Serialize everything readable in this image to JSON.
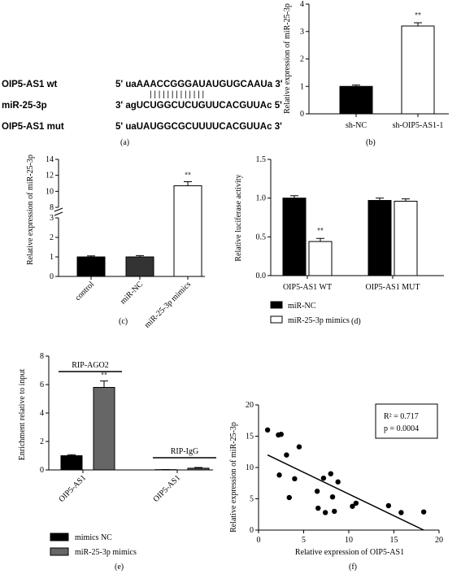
{
  "panel_a": {
    "caption": "(a)",
    "rows": [
      {
        "name": "OIP5-AS1  wt",
        "seq": "5' uaAAACCGGGAUAUGUGCAAUa 3'"
      },
      {
        "name": "miR-25-3p",
        "seq": "3' agUCUGGCUCUGUUCACGUUAc 5'"
      },
      {
        "name": "OIP5-AS1  mut",
        "seq": "5' uaUAUGGCGCUUUUCACGUUAc 3'"
      }
    ],
    "pairing": "|  |  |  |  |  |  |  |  |  |  |  |  |"
  },
  "chart_data": [
    {
      "panel": "b",
      "type": "bar",
      "caption": "(b)",
      "ylabel": "Relative expression of miR-25-3p",
      "categories": [
        "sh-NC",
        "sh-OIP5-AS1-1"
      ],
      "values": [
        1.0,
        3.2
      ],
      "errors": [
        0.05,
        0.12
      ],
      "fills": [
        "#000000",
        "#ffffff"
      ],
      "ylim": [
        0,
        4
      ],
      "yticks": [
        "0",
        "1",
        "2",
        "3",
        "4"
      ],
      "significance": [
        "",
        "**"
      ]
    },
    {
      "panel": "c",
      "type": "bar",
      "caption": "(c)",
      "ylabel": "Relative expression of miR-25-3p",
      "categories": [
        "control",
        "miR-NC",
        "miR-25-3p mimics"
      ],
      "values": [
        1.0,
        1.0,
        10.7
      ],
      "errors": [
        0.05,
        0.07,
        0.5
      ],
      "fills": [
        "#000000",
        "#333333",
        "#ffffff"
      ],
      "yaxis_break": [
        3,
        8
      ],
      "ylim": [
        0,
        14
      ],
      "yticks_lower": [
        "0",
        "1",
        "2",
        "3"
      ],
      "yticks_upper": [
        "8",
        "10",
        "12",
        "14"
      ],
      "significance": [
        "",
        "",
        "**"
      ]
    },
    {
      "panel": "d",
      "type": "bar",
      "caption": "(d)",
      "ylabel": "Relative luciferase activity",
      "categories": [
        "OIP5-AS1 WT",
        "OIP5-AS1 MUT"
      ],
      "series": [
        {
          "name": "miR-NC",
          "values": [
            1.0,
            0.97
          ],
          "errors": [
            0.03,
            0.03
          ],
          "color": "#000000"
        },
        {
          "name": "miR-25-3p mimics",
          "values": [
            0.44,
            0.96
          ],
          "errors": [
            0.04,
            0.03
          ],
          "color": "#ffffff"
        }
      ],
      "ylim": [
        0,
        1.5
      ],
      "yticks": [
        "0.0",
        "0.5",
        "1.0",
        "1.5"
      ],
      "significance": [
        "**",
        ""
      ]
    },
    {
      "panel": "e",
      "type": "bar",
      "caption": "(e)",
      "ylabel": "Enrichment relative to input",
      "groups": [
        "RIP-AGO2",
        "RIP-IgG"
      ],
      "categories": [
        "OIP5-AS1",
        "OIP5-AS1"
      ],
      "series": [
        {
          "name": "mimics NC",
          "values": [
            1.0,
            0.02
          ],
          "errors": [
            0.07,
            0.01
          ],
          "color": "#000000"
        },
        {
          "name": "miR-25-3p mimics",
          "values": [
            5.8,
            0.12
          ],
          "errors": [
            0.45,
            0.05
          ],
          "color": "#666666"
        }
      ],
      "ylim": [
        0,
        8
      ],
      "yticks": [
        "0",
        "2",
        "4",
        "6",
        "8"
      ],
      "significance": [
        "**",
        ""
      ]
    },
    {
      "panel": "f",
      "type": "scatter",
      "caption": "(f)",
      "xlabel": "Relative expression of OIP5-AS1",
      "ylabel": "Relative expression of miR-25-3p",
      "xlim": [
        0,
        20
      ],
      "ylim": [
        0,
        20
      ],
      "xticks": [
        "0",
        "5",
        "10",
        "15",
        "20"
      ],
      "yticks": [
        "0",
        "5",
        "10",
        "15",
        "20"
      ],
      "points": [
        [
          1.0,
          16.0
        ],
        [
          2.2,
          15.2
        ],
        [
          2.5,
          15.3
        ],
        [
          2.3,
          8.8
        ],
        [
          3.1,
          12.0
        ],
        [
          3.4,
          5.2
        ],
        [
          4.0,
          8.2
        ],
        [
          4.5,
          13.3
        ],
        [
          6.5,
          6.2
        ],
        [
          6.6,
          3.5
        ],
        [
          7.2,
          8.3
        ],
        [
          7.4,
          2.8
        ],
        [
          8.0,
          9.0
        ],
        [
          8.2,
          5.3
        ],
        [
          8.4,
          3.0
        ],
        [
          8.8,
          7.7
        ],
        [
          10.4,
          3.8
        ],
        [
          10.8,
          4.3
        ],
        [
          14.4,
          3.9
        ],
        [
          15.8,
          2.8
        ],
        [
          18.3,
          2.9
        ]
      ],
      "fit": [
        [
          1.0,
          12.0
        ],
        [
          18.3,
          0.0
        ]
      ],
      "annotation_r2": "R² = 0.717",
      "annotation_p": "p = 0.0004"
    }
  ]
}
